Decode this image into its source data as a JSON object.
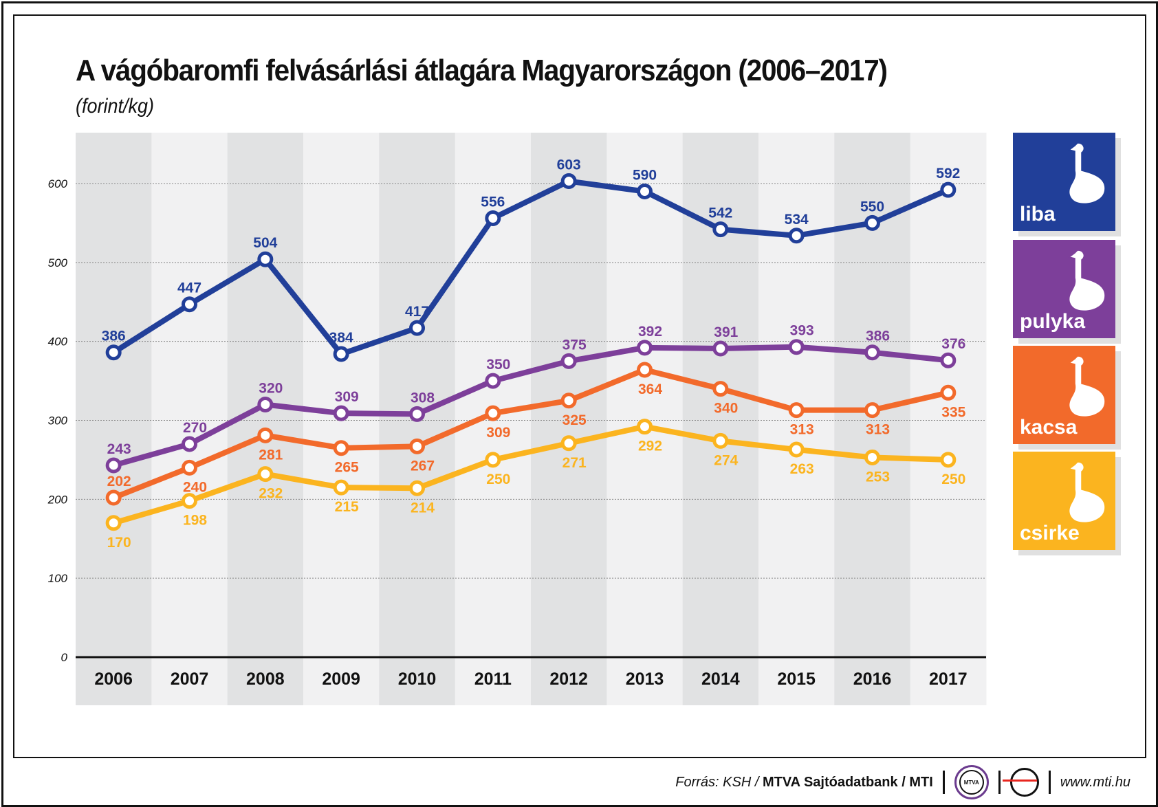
{
  "title": "A vágóbaromfi felvásárlási átlagára Magyarországon (2006–2017)",
  "subtitle": "(forint/kg)",
  "chart_data": {
    "type": "line",
    "title": "A vágóbaromfi felvásárlási átlagára Magyarországon (2006–2017)",
    "ylabel": "(forint/kg)",
    "categories": [
      "2006",
      "2007",
      "2008",
      "2009",
      "2010",
      "2011",
      "2012",
      "2013",
      "2014",
      "2015",
      "2016",
      "2017"
    ],
    "ylim": [
      0,
      650
    ],
    "yticks": [
      0,
      100,
      200,
      300,
      400,
      500,
      600
    ],
    "grid": true,
    "legend": "right",
    "series": [
      {
        "name": "liba",
        "color": "#213f99",
        "values": [
          386,
          447,
          504,
          384,
          417,
          556,
          603,
          590,
          542,
          534,
          550,
          592
        ]
      },
      {
        "name": "pulyka",
        "color": "#7d3f9a",
        "values": [
          243,
          270,
          320,
          309,
          308,
          350,
          375,
          392,
          391,
          393,
          386,
          376
        ]
      },
      {
        "name": "kacsa",
        "color": "#f26a2b",
        "values": [
          202,
          240,
          281,
          265,
          267,
          309,
          325,
          364,
          340,
          313,
          313,
          335
        ]
      },
      {
        "name": "csirke",
        "color": "#fbb41f",
        "values": [
          170,
          198,
          232,
          215,
          214,
          250,
          271,
          292,
          274,
          263,
          253,
          250
        ]
      }
    ]
  },
  "legend_icons": [
    "goose-icon",
    "turkey-icon",
    "duck-icon",
    "chicken-icon"
  ],
  "footer": {
    "source_prefix": "Forrás: KSH / ",
    "source_bold": "MTVA Sajtóadatbank / MTI",
    "mtva_logo": "MTVA",
    "url": "www.mti.hu"
  }
}
